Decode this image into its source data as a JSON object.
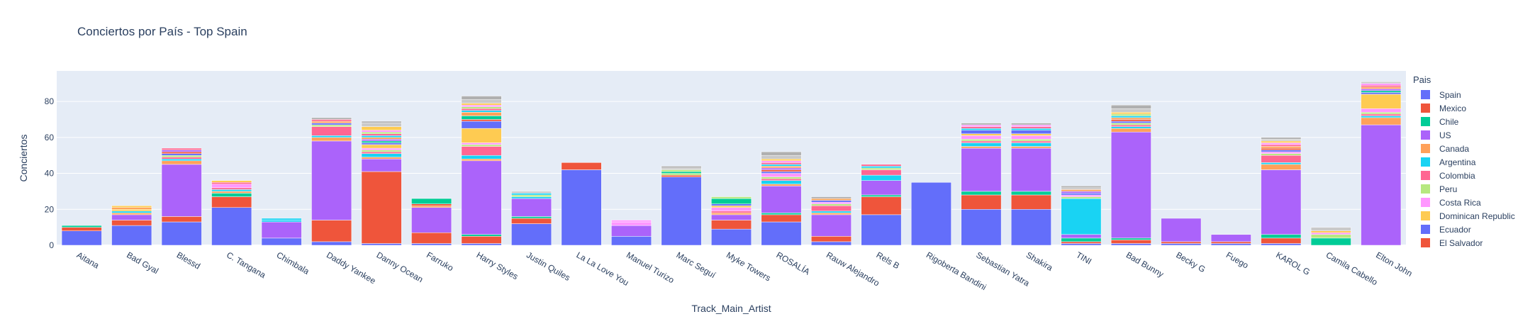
{
  "chart_data": {
    "type": "bar",
    "stacked": true,
    "title": "Conciertos por País - Top Spain",
    "xlabel": "Track_Main_Artist",
    "ylabel": "Conciertos",
    "ylim": [
      0,
      97
    ],
    "yticks": [
      0,
      20,
      40,
      60,
      80
    ],
    "grid": true,
    "legend_title": "Pais",
    "legend_position": "right",
    "categories": [
      "Aitana",
      "Bad Gyal",
      "Blessd",
      "C. Tangana",
      "Chimbala",
      "Daddy Yankee",
      "Danny Ocean",
      "Farruko",
      "Harry Styles",
      "Justin Quiles",
      "La La Love You",
      "Manuel Turizo",
      "Marc Seguí",
      "Myke Towers",
      "ROSALÍA",
      "Rauw Alejandro",
      "Rels B",
      "Rigoberta Bandini",
      "Sebastian Yatra",
      "Shakira",
      "TINI",
      "Bad Bunny",
      "Becky G",
      "Fuego",
      "KAROL G",
      "Camila Cabello",
      "Elton John"
    ],
    "series": [
      {
        "name": "Spain",
        "color": "#636efa",
        "values": [
          8,
          11,
          13,
          21,
          4,
          2,
          1,
          1,
          1,
          12,
          42,
          5,
          38,
          9,
          13,
          2,
          17,
          35,
          20,
          20,
          1,
          1,
          1,
          1,
          1,
          0,
          0
        ]
      },
      {
        "name": "Mexico",
        "color": "#EF553B",
        "values": [
          2,
          3,
          3,
          6,
          0,
          12,
          40,
          6,
          4,
          3,
          4,
          0,
          1,
          5,
          4,
          3,
          10,
          0,
          8,
          8,
          1,
          2,
          1,
          1,
          3,
          0,
          0
        ]
      },
      {
        "name": "Chile",
        "color": "#00cc96",
        "values": [
          1,
          0,
          0,
          2,
          0,
          0,
          0,
          0,
          1,
          1,
          0,
          0,
          0,
          0,
          1,
          0,
          1,
          0,
          2,
          2,
          2,
          1,
          0,
          0,
          2,
          4,
          0
        ]
      },
      {
        "name": "US",
        "color": "#ab63fa",
        "values": [
          0,
          3,
          29,
          0,
          9,
          44,
          7,
          14,
          41,
          10,
          0,
          6,
          0,
          3,
          15,
          12,
          8,
          0,
          24,
          24,
          2,
          59,
          13,
          4,
          36,
          0,
          67
        ]
      },
      {
        "name": "Canada",
        "color": "#FFA15A",
        "values": [
          0,
          1,
          2,
          1,
          0,
          2,
          1,
          1,
          1,
          0,
          0,
          0,
          0,
          1,
          1,
          1,
          0,
          0,
          1,
          1,
          0,
          2,
          0,
          0,
          3,
          0,
          4
        ]
      },
      {
        "name": "Argentina",
        "color": "#19d3f3",
        "values": [
          0,
          1,
          1,
          1,
          1,
          1,
          2,
          0,
          2,
          1,
          0,
          0,
          0,
          0,
          2,
          1,
          3,
          0,
          2,
          2,
          20,
          1,
          0,
          0,
          1,
          0,
          1
        ]
      },
      {
        "name": "Colombia",
        "color": "#FF6692",
        "values": [
          0,
          0,
          1,
          1,
          0,
          5,
          1,
          0,
          5,
          0,
          0,
          0,
          0,
          1,
          1,
          3,
          3,
          0,
          1,
          1,
          0,
          1,
          0,
          0,
          4,
          0,
          1
        ]
      },
      {
        "name": "Peru",
        "color": "#B6E880",
        "values": [
          0,
          0,
          1,
          0,
          0,
          1,
          1,
          0,
          1,
          1,
          0,
          0,
          1,
          0,
          1,
          1,
          1,
          0,
          1,
          1,
          1,
          1,
          0,
          0,
          1,
          2,
          1
        ]
      },
      {
        "name": "Costa Rica",
        "color": "#FF97FF",
        "values": [
          0,
          0,
          0,
          2,
          0,
          0,
          1,
          0,
          1,
          0,
          0,
          2,
          0,
          2,
          2,
          1,
          0,
          0,
          2,
          2,
          1,
          0,
          0,
          0,
          1,
          1,
          2
        ]
      },
      {
        "name": "Dominican Republic",
        "color": "#FECB52",
        "values": [
          0,
          1,
          0,
          0,
          0,
          0,
          2,
          0,
          8,
          0,
          0,
          0,
          0,
          1,
          0,
          0,
          0,
          0,
          1,
          1,
          0,
          0,
          0,
          0,
          0,
          0,
          8
        ]
      },
      {
        "name": "Ecuador",
        "color": "#636efa",
        "values": [
          0,
          0,
          1,
          0,
          0,
          1,
          1,
          0,
          4,
          0,
          0,
          0,
          0,
          1,
          1,
          1,
          0,
          0,
          2,
          2,
          1,
          1,
          0,
          0,
          1,
          0,
          1
        ]
      },
      {
        "name": "El Salvador",
        "color": "#EF553B",
        "values": [
          0,
          0,
          1,
          0,
          0,
          0,
          0,
          1,
          1,
          0,
          0,
          0,
          0,
          0,
          1,
          0,
          0,
          0,
          0,
          0,
          0,
          1,
          0,
          0,
          1,
          0,
          0
        ]
      },
      {
        "name": "",
        "color": "#00cc96",
        "values": [
          0,
          0,
          0,
          0,
          0,
          0,
          1,
          3,
          2,
          0,
          0,
          0,
          1,
          3,
          0,
          0,
          0,
          0,
          0,
          0,
          0,
          0,
          0,
          0,
          0,
          0,
          1
        ]
      },
      {
        "name": "",
        "color": "#ab63fa",
        "values": [
          0,
          0,
          1,
          0,
          0,
          0,
          1,
          0,
          0,
          0,
          0,
          0,
          0,
          0,
          1,
          0,
          0,
          0,
          0,
          0,
          1,
          0,
          0,
          0,
          0,
          0,
          1
        ]
      },
      {
        "name": "",
        "color": "#FFA15A",
        "values": [
          0,
          1,
          0,
          0,
          0,
          1,
          1,
          0,
          2,
          0,
          0,
          0,
          0,
          0,
          1,
          1,
          0,
          0,
          0,
          0,
          1,
          1,
          0,
          0,
          1,
          0,
          1
        ]
      },
      {
        "name": "",
        "color": "#19d3f3",
        "values": [
          0,
          0,
          0,
          0,
          1,
          0,
          1,
          0,
          1,
          1,
          0,
          0,
          0,
          0,
          1,
          0,
          1,
          0,
          1,
          1,
          0,
          1,
          0,
          0,
          0,
          0,
          0
        ]
      },
      {
        "name": "",
        "color": "#FF6692",
        "values": [
          0,
          0,
          1,
          1,
          0,
          1,
          1,
          0,
          1,
          0,
          0,
          0,
          0,
          0,
          1,
          0,
          1,
          0,
          1,
          1,
          0,
          0,
          0,
          0,
          1,
          0,
          1
        ]
      },
      {
        "name": "",
        "color": "#B6E880",
        "values": [
          0,
          0,
          0,
          0,
          0,
          0,
          1,
          0,
          1,
          0,
          0,
          0,
          1,
          1,
          0,
          0,
          0,
          0,
          0,
          0,
          0,
          1,
          0,
          0,
          0,
          0,
          0
        ]
      },
      {
        "name": "",
        "color": "#FF97FF",
        "values": [
          0,
          0,
          0,
          0,
          0,
          0,
          1,
          0,
          1,
          0,
          0,
          1,
          0,
          0,
          1,
          0,
          0,
          0,
          1,
          1,
          0,
          0,
          0,
          0,
          1,
          0,
          1
        ]
      },
      {
        "name": "",
        "color": "#FECB52",
        "values": [
          0,
          1,
          0,
          1,
          0,
          0,
          2,
          0,
          1,
          0,
          0,
          0,
          0,
          0,
          1,
          0,
          0,
          0,
          0,
          0,
          0,
          1,
          0,
          0,
          1,
          1,
          0
        ]
      },
      {
        "name": "",
        "color": "#c9c9c9",
        "values": [
          0,
          0,
          0,
          0,
          0,
          0,
          2,
          0,
          2,
          1,
          0,
          0,
          1,
          0,
          2,
          0,
          0,
          0,
          0,
          0,
          1,
          2,
          0,
          0,
          1,
          2,
          1
        ]
      },
      {
        "name": "",
        "color": "#b0b0b0",
        "values": [
          0,
          0,
          0,
          0,
          0,
          1,
          1,
          0,
          2,
          0,
          0,
          0,
          1,
          0,
          2,
          1,
          0,
          0,
          1,
          1,
          1,
          2,
          0,
          0,
          1,
          0,
          0
        ]
      }
    ]
  }
}
